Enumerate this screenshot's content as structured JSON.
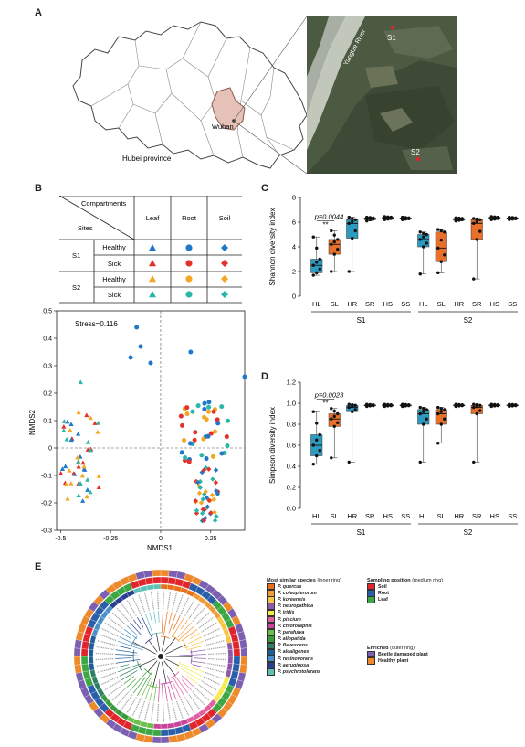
{
  "panels": {
    "a": {
      "label": "A",
      "province_label": "Hubei province",
      "city_label": "Wuhan",
      "river_label": "Yangtze River",
      "sites": [
        "S1",
        "S2"
      ]
    },
    "b": {
      "label": "B",
      "table": {
        "header_top": "Compartments",
        "header_bottom": "Sites",
        "columns": [
          "Leaf",
          "Root",
          "Soil"
        ],
        "rows": [
          {
            "site": "S1",
            "status": "Healthy"
          },
          {
            "site": "S1",
            "status": "Sick"
          },
          {
            "site": "S2",
            "status": "Healthy"
          },
          {
            "site": "S2",
            "status": "Sick"
          }
        ],
        "colors": {
          "s1_healthy": "#1f78c8",
          "s1_sick": "#e3322b",
          "s2_healthy": "#f5a623",
          "s2_sick": "#2ab7a9"
        }
      },
      "nmds": {
        "stress": "Stress=0.116",
        "xlabel": "NMDS1",
        "ylabel": "NMDS2",
        "xticks": [
          "-0.5",
          "-0.25",
          "0",
          "0.25"
        ],
        "yticks": [
          "0.5",
          "0.4",
          "0.3",
          "0.2",
          "0.1",
          "0",
          "-0.1",
          "-0.2",
          "-0.3"
        ]
      }
    },
    "c": {
      "label": "C"
    },
    "d": {
      "label": "D"
    },
    "e": {
      "label": "E",
      "legend_species_title": "Most similar species",
      "legend_species_note": "(inner ring)",
      "species": [
        "P. quercus",
        "P. coleopterorum",
        "P. koreensis",
        "P. neuropathica",
        "P. iridis",
        "P. piscium",
        "P. chlororaphis",
        "P. parafulva",
        "P. allopatida",
        "P. flavescens",
        "P. alcaligenes",
        "P. resinovorans",
        "P. aeruginosa",
        "P. psychrotolerans"
      ],
      "species_colors": [
        "#e8701a",
        "#f29b3a",
        "#f7c648",
        "#8a5aa8",
        "#f6e94a",
        "#e35fa0",
        "#c8439a",
        "#6cbf4a",
        "#3a9a3e",
        "#2f7f63",
        "#1f5d9a",
        "#4a90c8",
        "#2a3f8f",
        "#5fc0b5"
      ],
      "legend_position_title": "Sampling position",
      "legend_position_note": "(medium ring)",
      "positions": [
        "Soil",
        "Root",
        "Leaf"
      ],
      "position_colors": [
        "#e0262c",
        "#2a5ea8",
        "#3da843"
      ],
      "legend_enriched_title": "Enriched",
      "legend_enriched_note": "(outer ring)",
      "enriched": [
        "Beetle damaged plant",
        "Healthy plant"
      ],
      "enriched_colors": [
        "#7b5fb0",
        "#ee8a2c"
      ]
    }
  },
  "chart_data": [
    {
      "type": "box",
      "title": "",
      "xlabel": "",
      "ylabel": "Shannon diversity index",
      "ylim": [
        0,
        8
      ],
      "yticks": [
        0,
        2,
        4,
        6,
        8
      ],
      "categories": [
        "HL",
        "SL",
        "HR",
        "SR",
        "HS",
        "SS"
      ],
      "site_groups": [
        "S1",
        "S2"
      ],
      "annotation": {
        "text": "p=0.0044",
        "stars": "**"
      },
      "box_colors": [
        "#2b9bbf",
        "#e8702a"
      ],
      "groups": [
        {
          "site": "S1",
          "cat": "HL",
          "min": 1.7,
          "q1": 1.9,
          "median": 2.5,
          "q3": 3.0,
          "max": 4.8
        },
        {
          "site": "S1",
          "cat": "SL",
          "min": 2.0,
          "q1": 3.4,
          "median": 4.2,
          "q3": 4.6,
          "max": 5.3
        },
        {
          "site": "S1",
          "cat": "HR",
          "min": 2.0,
          "q1": 4.7,
          "median": 5.9,
          "q3": 6.2,
          "max": 6.4
        },
        {
          "site": "S1",
          "cat": "SR",
          "min": 6.1,
          "q1": 6.2,
          "median": 6.3,
          "q3": 6.35,
          "max": 6.4
        },
        {
          "site": "S1",
          "cat": "HS",
          "min": 6.2,
          "q1": 6.25,
          "median": 6.35,
          "q3": 6.4,
          "max": 6.45
        },
        {
          "site": "S1",
          "cat": "SS",
          "min": 6.2,
          "q1": 6.25,
          "median": 6.3,
          "q3": 6.35,
          "max": 6.4
        },
        {
          "site": "S2",
          "cat": "HL",
          "min": 1.8,
          "q1": 4.0,
          "median": 4.6,
          "q3": 5.0,
          "max": 5.2
        },
        {
          "site": "S2",
          "cat": "SL",
          "min": 1.9,
          "q1": 2.8,
          "median": 3.9,
          "q3": 5.2,
          "max": 5.4
        },
        {
          "site": "S2",
          "cat": "HR",
          "min": 6.1,
          "q1": 6.15,
          "median": 6.25,
          "q3": 6.3,
          "max": 6.35
        },
        {
          "site": "S2",
          "cat": "SR",
          "min": 1.4,
          "q1": 4.6,
          "median": 5.9,
          "q3": 6.2,
          "max": 6.3
        },
        {
          "site": "S2",
          "cat": "HS",
          "min": 6.2,
          "q1": 6.25,
          "median": 6.35,
          "q3": 6.4,
          "max": 6.45
        },
        {
          "site": "S2",
          "cat": "SS",
          "min": 6.2,
          "q1": 6.25,
          "median": 6.3,
          "q3": 6.35,
          "max": 6.4
        }
      ]
    },
    {
      "type": "box",
      "title": "",
      "xlabel": "",
      "ylabel": "Simpson diversity index",
      "ylim": [
        0,
        1.2
      ],
      "yticks": [
        0,
        0.2,
        0.4,
        0.6,
        0.8,
        1.0,
        1.2
      ],
      "categories": [
        "HL",
        "SL",
        "HR",
        "SR",
        "HS",
        "SS"
      ],
      "site_groups": [
        "S1",
        "S2"
      ],
      "annotation": {
        "text": "p=0.0023",
        "stars": "**"
      },
      "box_colors": [
        "#2b9bbf",
        "#e8702a"
      ],
      "groups": [
        {
          "site": "S1",
          "cat": "HL",
          "min": 0.42,
          "q1": 0.5,
          "median": 0.6,
          "q3": 0.7,
          "max": 0.92
        },
        {
          "site": "S1",
          "cat": "SL",
          "min": 0.48,
          "q1": 0.78,
          "median": 0.85,
          "q3": 0.9,
          "max": 0.95
        },
        {
          "site": "S1",
          "cat": "HR",
          "min": 0.44,
          "q1": 0.92,
          "median": 0.96,
          "q3": 0.98,
          "max": 0.99
        },
        {
          "site": "S1",
          "cat": "SR",
          "min": 0.97,
          "q1": 0.975,
          "median": 0.98,
          "q3": 0.985,
          "max": 0.99
        },
        {
          "site": "S1",
          "cat": "HS",
          "min": 0.97,
          "q1": 0.975,
          "median": 0.98,
          "q3": 0.985,
          "max": 0.99
        },
        {
          "site": "S1",
          "cat": "SS",
          "min": 0.97,
          "q1": 0.975,
          "median": 0.98,
          "q3": 0.985,
          "max": 0.99
        },
        {
          "site": "S2",
          "cat": "HL",
          "min": 0.44,
          "q1": 0.8,
          "median": 0.9,
          "q3": 0.94,
          "max": 0.96
        },
        {
          "site": "S2",
          "cat": "SL",
          "min": 0.62,
          "q1": 0.8,
          "median": 0.9,
          "q3": 0.94,
          "max": 0.96
        },
        {
          "site": "S2",
          "cat": "HR",
          "min": 0.97,
          "q1": 0.975,
          "median": 0.98,
          "q3": 0.985,
          "max": 0.99
        },
        {
          "site": "S2",
          "cat": "SR",
          "min": 0.44,
          "q1": 0.9,
          "median": 0.96,
          "q3": 0.98,
          "max": 0.99
        },
        {
          "site": "S2",
          "cat": "HS",
          "min": 0.97,
          "q1": 0.975,
          "median": 0.98,
          "q3": 0.985,
          "max": 0.99
        },
        {
          "site": "S2",
          "cat": "SS",
          "min": 0.97,
          "q1": 0.975,
          "median": 0.98,
          "q3": 0.985,
          "max": 0.99
        }
      ]
    }
  ]
}
